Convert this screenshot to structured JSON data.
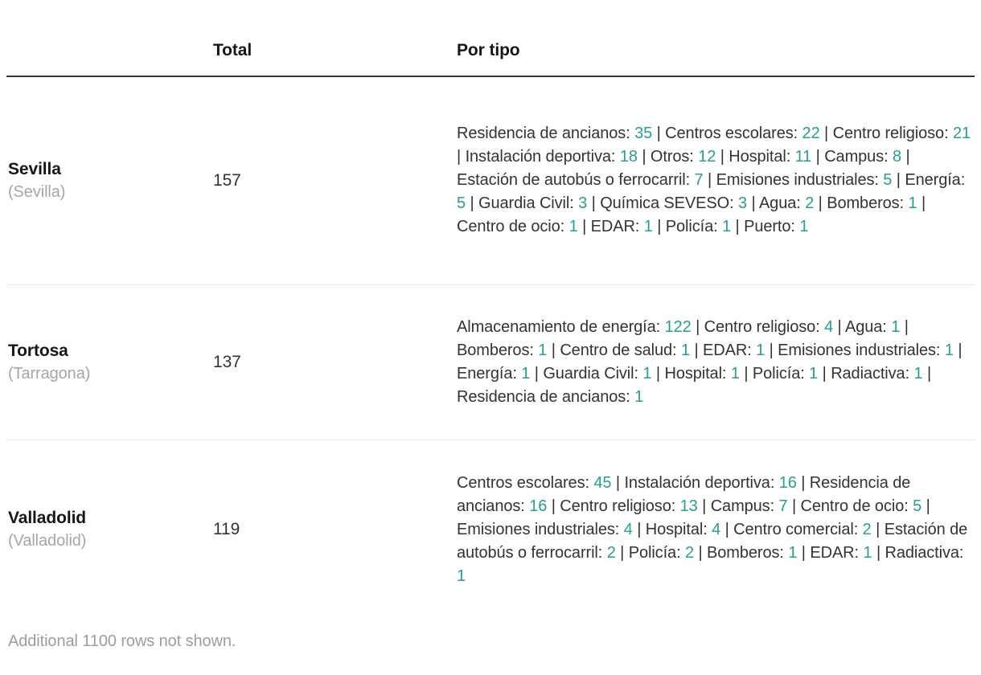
{
  "chart_data": {
    "type": "table",
    "columns": [
      "",
      "Total",
      "Por tipo"
    ],
    "separator": " | ",
    "rows": [
      {
        "name": "Sevilla",
        "region": "(Sevilla)",
        "total": 157,
        "por_tipo": [
          {
            "tipo": "Residencia de ancianos",
            "n": 35
          },
          {
            "tipo": "Centros escolares",
            "n": 22
          },
          {
            "tipo": "Centro religioso",
            "n": 21
          },
          {
            "tipo": "Instalación deportiva",
            "n": 18
          },
          {
            "tipo": "Otros",
            "n": 12
          },
          {
            "tipo": "Hospital",
            "n": 11
          },
          {
            "tipo": "Campus",
            "n": 8
          },
          {
            "tipo": "Estación de autobús o ferrocarril",
            "n": 7
          },
          {
            "tipo": "Emisiones industriales",
            "n": 5
          },
          {
            "tipo": "Energía",
            "n": 5
          },
          {
            "tipo": "Guardia Civil",
            "n": 3
          },
          {
            "tipo": "Química SEVESO",
            "n": 3
          },
          {
            "tipo": "Agua",
            "n": 2
          },
          {
            "tipo": "Bomberos",
            "n": 1
          },
          {
            "tipo": "Centro de ocio",
            "n": 1
          },
          {
            "tipo": "EDAR",
            "n": 1
          },
          {
            "tipo": "Policía",
            "n": 1
          },
          {
            "tipo": "Puerto",
            "n": 1
          }
        ]
      },
      {
        "name": "Tortosa",
        "region": "(Tarragona)",
        "total": 137,
        "por_tipo": [
          {
            "tipo": "Almacenamiento de energía",
            "n": 122
          },
          {
            "tipo": "Centro religioso",
            "n": 4
          },
          {
            "tipo": "Agua",
            "n": 1
          },
          {
            "tipo": "Bomberos",
            "n": 1
          },
          {
            "tipo": "Centro de salud",
            "n": 1
          },
          {
            "tipo": "EDAR",
            "n": 1
          },
          {
            "tipo": "Emisiones industriales",
            "n": 1
          },
          {
            "tipo": "Energía",
            "n": 1
          },
          {
            "tipo": "Guardia Civil",
            "n": 1
          },
          {
            "tipo": "Hospital",
            "n": 1
          },
          {
            "tipo": "Policía",
            "n": 1
          },
          {
            "tipo": "Radiactiva",
            "n": 1
          },
          {
            "tipo": "Residencia de ancianos",
            "n": 1
          }
        ]
      },
      {
        "name": "Valladolid",
        "region": "(Valladolid)",
        "total": 119,
        "por_tipo": [
          {
            "tipo": "Centros escolares",
            "n": 45
          },
          {
            "tipo": "Instalación deportiva",
            "n": 16
          },
          {
            "tipo": "Residencia de ancianos",
            "n": 16
          },
          {
            "tipo": "Centro religioso",
            "n": 13
          },
          {
            "tipo": "Campus",
            "n": 7
          },
          {
            "tipo": "Centro de ocio",
            "n": 5
          },
          {
            "tipo": "Emisiones industriales",
            "n": 4
          },
          {
            "tipo": "Hospital",
            "n": 4
          },
          {
            "tipo": "Centro comercial",
            "n": 2
          },
          {
            "tipo": "Estación de autobús o ferrocarril",
            "n": 2
          },
          {
            "tipo": "Policía",
            "n": 2
          },
          {
            "tipo": "Bomberos",
            "n": 1
          },
          {
            "tipo": "EDAR",
            "n": 1
          },
          {
            "tipo": "Radiactiva",
            "n": 1
          }
        ]
      }
    ]
  },
  "footer_note": "Additional 1100 rows not shown.",
  "colors": {
    "accent": "#2b9c8e",
    "text": "#333333",
    "heading": "#161616",
    "muted": "#a6a6a6",
    "footer": "#9d9d9d",
    "rule_dark": "#333333",
    "divider": "#e8e8e8"
  }
}
